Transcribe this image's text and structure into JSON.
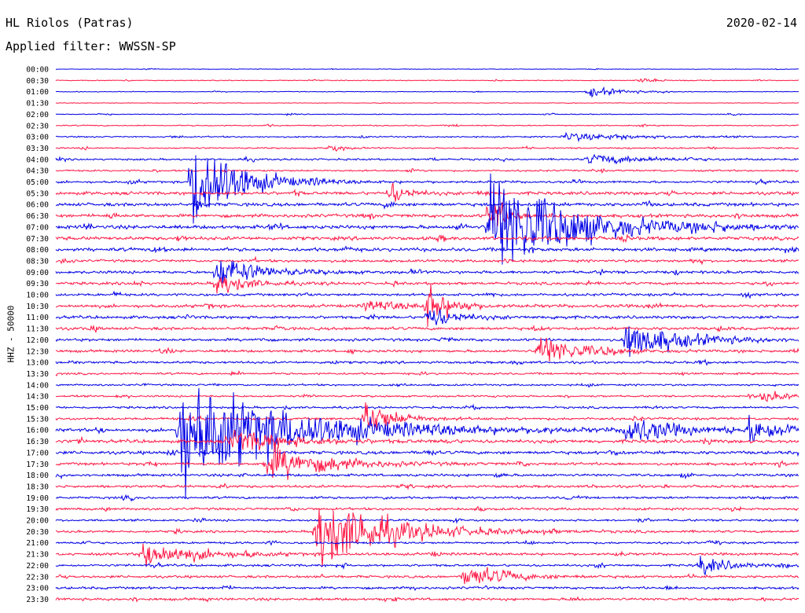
{
  "header": {
    "station": "HL Riolos (Patras)",
    "date": "2020-02-14",
    "filter": "Applied filter: WWSSN-SP"
  },
  "chart_data": {
    "type": "line",
    "title": "HL Riolos (Patras)",
    "ylabel": "HHZ - 50000",
    "rows": [
      "00:00",
      "00:30",
      "01:00",
      "01:30",
      "02:00",
      "02:30",
      "03:00",
      "03:30",
      "04:00",
      "04:30",
      "05:00",
      "05:30",
      "06:00",
      "06:30",
      "07:00",
      "07:30",
      "08:00",
      "08:30",
      "09:00",
      "09:30",
      "10:00",
      "10:30",
      "11:00",
      "11:30",
      "12:00",
      "12:30",
      "13:00",
      "13:30",
      "14:00",
      "14:30",
      "15:00",
      "15:30",
      "16:00",
      "16:30",
      "17:00",
      "17:30",
      "18:00",
      "18:30",
      "19:00",
      "19:30",
      "20:00",
      "20:30",
      "21:00",
      "21:30",
      "22:00",
      "22:30",
      "23:00",
      "23:30"
    ],
    "colors": [
      "#0000e6",
      "#ff1744"
    ],
    "noise_level": [
      0.4,
      0.6,
      0.5,
      0.4,
      0.6,
      0.8,
      1.0,
      1.0,
      1.3,
      1.2,
      1.6,
      2.2,
      2.3,
      2.3,
      2.5,
      2.4,
      2.4,
      1.8,
      2.0,
      1.9,
      1.8,
      2.2,
      2.0,
      2.0,
      1.9,
      1.8,
      1.7,
      1.4,
      1.3,
      1.3,
      1.5,
      1.7,
      2.2,
      2.3,
      2.2,
      1.9,
      1.8,
      1.8,
      1.6,
      1.7,
      1.5,
      1.6,
      1.5,
      1.8,
      1.6,
      1.7,
      1.7,
      1.8
    ],
    "events": [
      {
        "row": 2,
        "minute": 21.5,
        "amp": 8,
        "dur": 1.2
      },
      {
        "row": 1,
        "minute": 23.5,
        "amp": 4,
        "dur": 0.6
      },
      {
        "row": 6,
        "minute": 20.5,
        "amp": 6,
        "dur": 2.5
      },
      {
        "row": 7,
        "minute": 11.0,
        "amp": 5,
        "dur": 0.5
      },
      {
        "row": 8,
        "minute": 21.5,
        "amp": 8,
        "dur": 2
      },
      {
        "row": 10,
        "minute": 5.5,
        "amp": 90,
        "dur": 1.5
      },
      {
        "row": 18,
        "minute": 6.5,
        "amp": 25,
        "dur": 1.5
      },
      {
        "row": 19,
        "minute": 6.5,
        "amp": 20,
        "dur": 1
      },
      {
        "row": 11,
        "minute": 13.5,
        "amp": 18,
        "dur": 0.6
      },
      {
        "row": 13,
        "minute": 17.5,
        "amp": 40,
        "dur": 0.5
      },
      {
        "row": 14,
        "minute": 17.5,
        "amp": 85,
        "dur": 3
      },
      {
        "row": 21,
        "minute": 15.0,
        "amp": 35,
        "dur": 0.7
      },
      {
        "row": 24,
        "minute": 23.0,
        "amp": 30,
        "dur": 2
      },
      {
        "row": 25,
        "minute": 19.5,
        "amp": 25,
        "dur": 1.5
      },
      {
        "row": 32,
        "minute": 5.0,
        "amp": 90,
        "dur": 4
      },
      {
        "row": 33,
        "minute": 7.0,
        "amp": 18,
        "dur": 2
      },
      {
        "row": 35,
        "minute": 8.5,
        "amp": 30,
        "dur": 2
      },
      {
        "row": 41,
        "minute": 10.5,
        "amp": 60,
        "dur": 2.5
      },
      {
        "row": 43,
        "minute": 3.5,
        "amp": 20,
        "dur": 2
      },
      {
        "row": 45,
        "minute": 16.5,
        "amp": 18,
        "dur": 1.5
      },
      {
        "row": 32,
        "minute": 23.0,
        "amp": 25,
        "dur": 1.5
      },
      {
        "row": 32,
        "minute": 28.0,
        "amp": 20,
        "dur": 1.5
      },
      {
        "row": 29,
        "minute": 28.5,
        "amp": 8,
        "dur": 1.2
      },
      {
        "row": 44,
        "minute": 26.0,
        "amp": 15,
        "dur": 1
      },
      {
        "row": 21,
        "minute": 12.5,
        "amp": 8,
        "dur": 1.5
      },
      {
        "row": 22,
        "minute": 15.0,
        "amp": 18,
        "dur": 1
      },
      {
        "row": 31,
        "minute": 12.5,
        "amp": 30,
        "dur": 1
      }
    ]
  }
}
